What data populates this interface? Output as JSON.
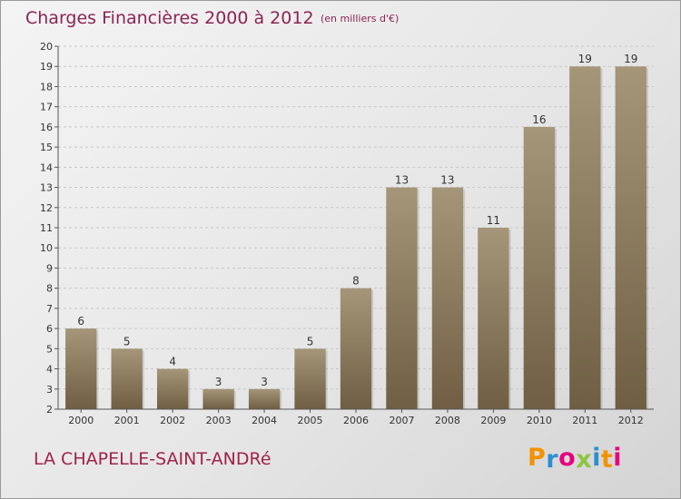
{
  "header": {
    "title": "Charges Financières 2000 à 2012",
    "subtitle": "(en milliers d'€)"
  },
  "footer": {
    "commune": "LA CHAPELLE-SAINT-ANDRé",
    "logo": {
      "letters": [
        "P",
        "r",
        "o",
        "x",
        "i",
        "t",
        "i"
      ],
      "colors": [
        "#f39200",
        "#2a8fd0",
        "#e6007e",
        "#8cc63f",
        "#2a8fd0",
        "#f39200",
        "#e6007e"
      ]
    }
  },
  "chart_data": {
    "type": "bar",
    "categories": [
      "2000",
      "2001",
      "2002",
      "2003",
      "2004",
      "2005",
      "2006",
      "2007",
      "2008",
      "2009",
      "2010",
      "2011",
      "2012"
    ],
    "values": [
      6,
      5,
      4,
      3,
      3,
      5,
      8,
      13,
      13,
      11,
      16,
      19,
      19
    ],
    "ylim": [
      2,
      20
    ],
    "yticks": [
      2,
      3,
      4,
      5,
      6,
      7,
      8,
      9,
      10,
      11,
      12,
      13,
      14,
      15,
      16,
      17,
      18,
      19,
      20
    ],
    "grid": true,
    "data_labels": true,
    "colors": {
      "bar_light": "#a59679",
      "bar_dark": "#6f5e43",
      "grid": "#c8c8c8",
      "axis": "#555555",
      "text": "#333333"
    }
  }
}
